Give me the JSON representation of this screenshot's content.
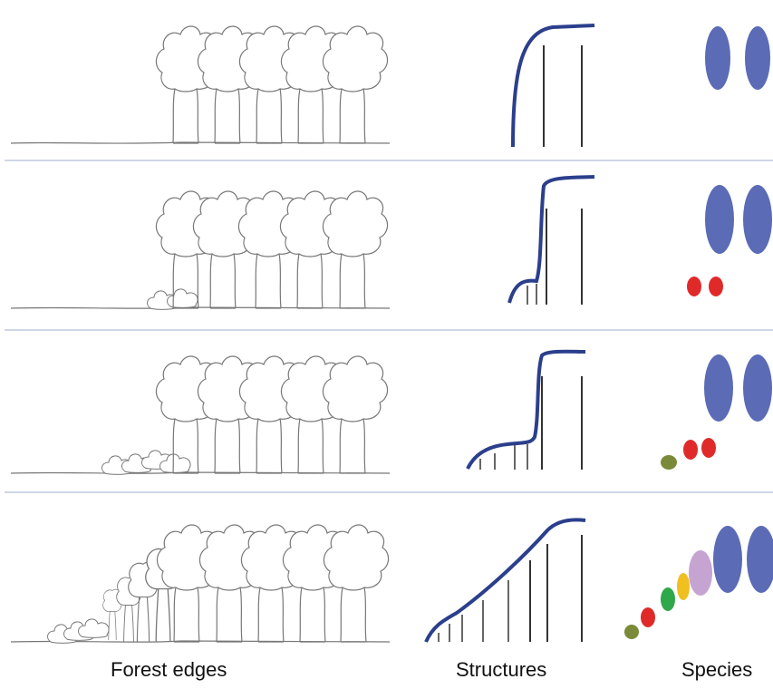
{
  "labels": {
    "forest_edges": "Forest edges",
    "structures": "Structures",
    "species": "Species"
  },
  "colors": {
    "structure_curve": "#2b3f8c",
    "tree_outline": "#777777",
    "large_species": "#5b6bb5",
    "red_species": "#e02a2a",
    "olive_species": "#7a8a38",
    "green_species": "#2ea84a",
    "yellow_species": "#f0c020",
    "lilac_species": "#c6a4d2"
  },
  "panels": [
    {
      "stage": 1,
      "species": [
        "large",
        "large"
      ]
    },
    {
      "stage": 2,
      "species": [
        "large",
        "large",
        "red",
        "red"
      ]
    },
    {
      "stage": 3,
      "species": [
        "large",
        "large",
        "olive",
        "red",
        "red"
      ]
    },
    {
      "stage": 4,
      "species": [
        "olive",
        "red",
        "green",
        "yellow",
        "lilac",
        "large",
        "large"
      ]
    }
  ]
}
